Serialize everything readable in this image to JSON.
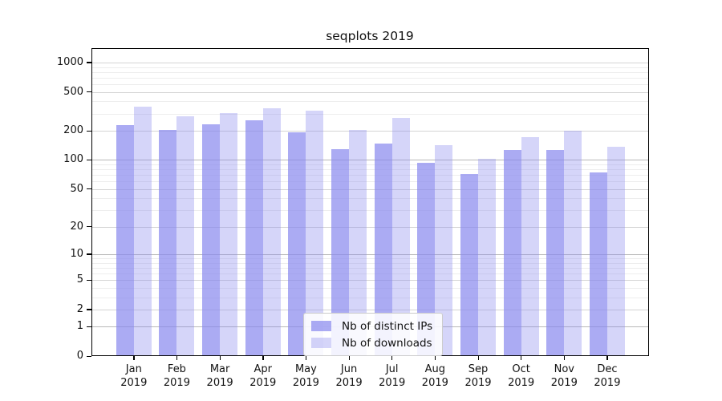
{
  "chart_data": {
    "type": "bar",
    "title": "seqplots 2019",
    "scale": "log1p",
    "categories": [
      "Jan",
      "Feb",
      "Mar",
      "Apr",
      "May",
      "Jun",
      "Jul",
      "Aug",
      "Sep",
      "Oct",
      "Nov",
      "Dec"
    ],
    "year": "2019",
    "series": [
      {
        "name": "Nb of distinct IPs",
        "color": "rgba(136,136,238,0.70)",
        "values": [
          230,
          203,
          234,
          255,
          193,
          130,
          149,
          93,
          72,
          128,
          128,
          74
        ]
      },
      {
        "name": "Nb of downloads",
        "color": "rgba(136,136,238,0.35)",
        "values": [
          350,
          283,
          303,
          338,
          323,
          205,
          272,
          143,
          103,
          173,
          201,
          138
        ]
      }
    ],
    "yticks": [
      0,
      1,
      2,
      5,
      10,
      20,
      50,
      100,
      200,
      500,
      1000
    ],
    "minor_gridlines": [
      3,
      4,
      6,
      7,
      8,
      9,
      30,
      40,
      60,
      70,
      80,
      90,
      300,
      400,
      600,
      700,
      800,
      900
    ],
    "decade_gridlines": [
      1,
      10,
      100
    ],
    "ylim": [
      0,
      1400
    ],
    "xlabel": "",
    "ylabel": "",
    "legend_position": "bottom-center",
    "grid": "on",
    "colors": {
      "bar_base": "#8888ee",
      "axis": "#000000",
      "grid_major": "#b8b8b8",
      "grid_minor": "#ededed"
    }
  }
}
